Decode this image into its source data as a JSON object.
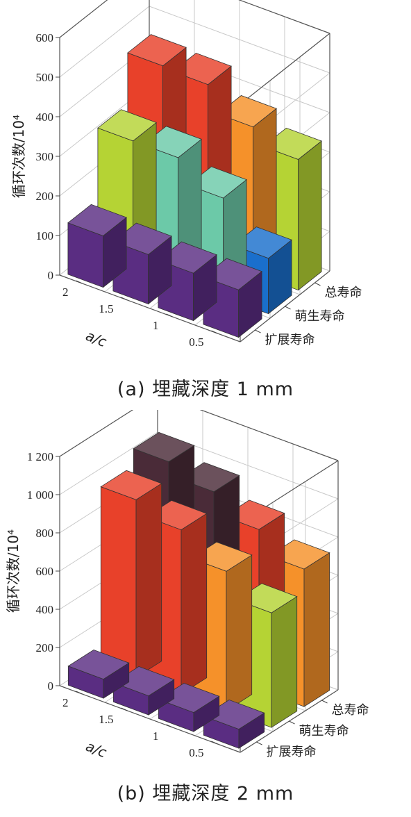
{
  "colors": {
    "purple": "#5a2d82",
    "green": "#b5d334",
    "orange": "#f5912a",
    "red": "#e8412a",
    "teal": "#6cc9a8",
    "blue": "#1a6fcc",
    "dark": "#4a2b38"
  },
  "chart_data": [
    {
      "type": "bar3d",
      "caption": "(a) 埋藏深度 1 mm",
      "zlabel": "循环次数/10⁴",
      "xlabel": "a/c",
      "x_categories": [
        "2",
        "1.5",
        "1",
        "0.5"
      ],
      "y_categories": [
        "扩展寿命",
        "萌生寿命",
        "总寿命"
      ],
      "zlim": [
        0,
        600
      ],
      "zticks": [
        "0",
        "100",
        "200",
        "300",
        "400",
        "500",
        "600"
      ],
      "series": [
        {
          "name": "扩展寿命",
          "values": [
            130,
            125,
            120,
            120
          ],
          "colors": [
            "purple",
            "purple",
            "purple",
            "purple"
          ]
        },
        {
          "name": "萌生寿命",
          "values": [
            310,
            310,
            250,
            140
          ],
          "colors": [
            "green",
            "teal",
            "teal",
            "blue"
          ]
        },
        {
          "name": "总寿命",
          "values": [
            440,
            435,
            370,
            330
          ],
          "colors": [
            "red",
            "red",
            "orange",
            "green"
          ]
        }
      ]
    },
    {
      "type": "bar3d",
      "caption": "(b) 埋藏深度 2 mm",
      "zlabel": "循环次数/10⁴",
      "xlabel": "a/c",
      "x_categories": [
        "2",
        "1.5",
        "1",
        "0.5"
      ],
      "y_categories": [
        "扩展寿命",
        "萌生寿命",
        "总寿命"
      ],
      "zlim": [
        0,
        1200
      ],
      "zticks": [
        "0",
        "200",
        "400",
        "600",
        "800",
        "1 000",
        "1 200"
      ],
      "series": [
        {
          "name": "扩展寿命",
          "values": [
            100,
            100,
            100,
            100
          ],
          "colors": [
            "purple",
            "purple",
            "purple",
            "purple"
          ]
        },
        {
          "name": "萌生寿命",
          "values": [
            930,
            860,
            730,
            600
          ],
          "colors": [
            "red",
            "red",
            "orange",
            "green"
          ]
        },
        {
          "name": "总寿命",
          "values": [
            1020,
            950,
            840,
            720
          ],
          "colors": [
            "dark",
            "dark",
            "red",
            "orange"
          ]
        }
      ]
    }
  ]
}
